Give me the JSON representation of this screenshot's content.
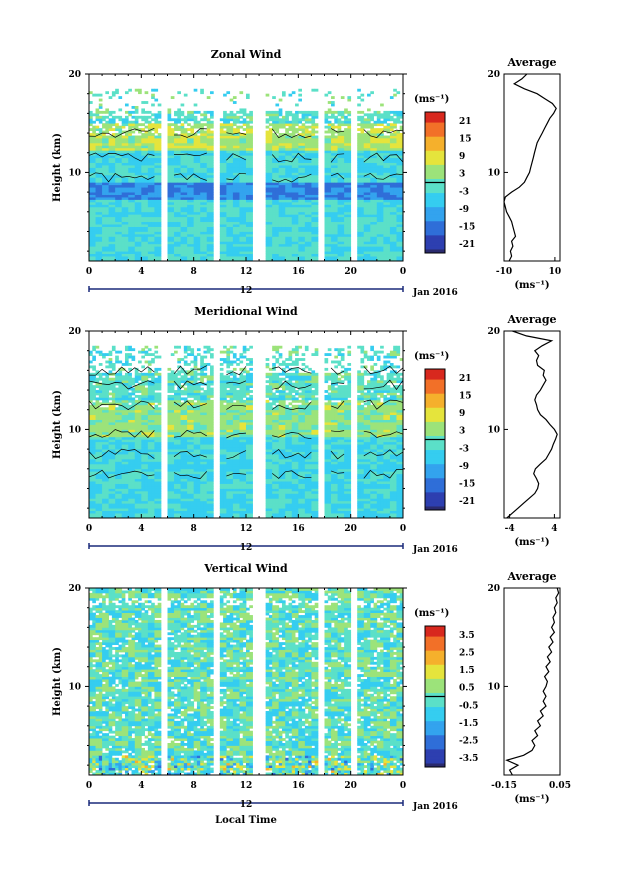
{
  "figure": {
    "month_label": "Jan 2016",
    "local_time_label": "Local Time",
    "height_label": "Height (km)",
    "date_label": "12",
    "average_title": "Average"
  },
  "chart_data": [
    {
      "type": "heatmap",
      "title": "Zonal Wind",
      "xlabel": "",
      "ylabel": "Height (km)",
      "x_ticks": [
        "0",
        "4",
        "8",
        "12",
        "16",
        "20",
        "0"
      ],
      "xlim": [
        0,
        24
      ],
      "y_ticks": [
        "10",
        "20"
      ],
      "ylim": [
        1,
        20
      ],
      "data_gaps_hours": [
        [
          5.5,
          6.0
        ],
        [
          9.5,
          10.0
        ],
        [
          12.5,
          13.5
        ],
        [
          17.5,
          18.0
        ],
        [
          20.0,
          20.5
        ]
      ],
      "colorbar": {
        "unit": "(ms⁻¹)",
        "ticks": [
          "21",
          "15",
          "9",
          "3",
          "-3",
          "-9",
          "-15",
          "-21"
        ],
        "range": [
          -24,
          24
        ]
      },
      "profile": {
        "title": "Average",
        "xlim": [
          -10,
          12
        ],
        "x_ticks": [
          "-10",
          "10"
        ],
        "xlabel": "(ms⁻¹)",
        "points": [
          [
            -8,
            1
          ],
          [
            -7,
            1.5
          ],
          [
            -7.5,
            2
          ],
          [
            -6.5,
            2.5
          ],
          [
            -7,
            3
          ],
          [
            -5.5,
            3.5
          ],
          [
            -6,
            4
          ],
          [
            -6.5,
            4.5
          ],
          [
            -7,
            5
          ],
          [
            -8,
            5.5
          ],
          [
            -9,
            6
          ],
          [
            -9.5,
            6.5
          ],
          [
            -10,
            7
          ],
          [
            -9.5,
            7.5
          ],
          [
            -7,
            8
          ],
          [
            -4,
            8.5
          ],
          [
            -2,
            9
          ],
          [
            -1,
            9.5
          ],
          [
            0,
            10
          ],
          [
            0.5,
            10.5
          ],
          [
            1,
            11
          ],
          [
            1.5,
            11.5
          ],
          [
            2,
            12
          ],
          [
            2.5,
            12.5
          ],
          [
            3,
            13
          ],
          [
            4,
            13.5
          ],
          [
            5,
            14
          ],
          [
            6,
            14.5
          ],
          [
            7,
            15
          ],
          [
            8,
            15.5
          ],
          [
            9.5,
            16
          ],
          [
            10.5,
            16.5
          ],
          [
            9,
            17
          ],
          [
            6,
            17.5
          ],
          [
            3,
            18
          ],
          [
            -2,
            18.5
          ],
          [
            -6,
            19
          ],
          [
            -3,
            19.5
          ],
          [
            -1,
            20
          ]
        ]
      }
    },
    {
      "type": "heatmap",
      "title": "Meridional Wind",
      "xlabel": "",
      "ylabel": "Height (km)",
      "x_ticks": [
        "0",
        "4",
        "8",
        "12",
        "16",
        "20",
        "0"
      ],
      "xlim": [
        0,
        24
      ],
      "y_ticks": [
        "10",
        "20"
      ],
      "ylim": [
        1,
        20
      ],
      "data_gaps_hours": [
        [
          5.5,
          6.0
        ],
        [
          9.5,
          10.0
        ],
        [
          12.5,
          13.5
        ],
        [
          17.5,
          18.0
        ],
        [
          20.0,
          20.5
        ]
      ],
      "colorbar": {
        "unit": "(ms⁻¹)",
        "ticks": [
          "21",
          "15",
          "9",
          "3",
          "-3",
          "-9",
          "-15",
          "-21"
        ],
        "range": [
          -24,
          24
        ]
      },
      "profile": {
        "title": "Average",
        "xlim": [
          -5,
          5
        ],
        "x_ticks": [
          "-4",
          "4"
        ],
        "xlabel": "(ms⁻¹)",
        "points": [
          [
            -4.5,
            1
          ],
          [
            -3.5,
            1.5
          ],
          [
            -2.5,
            2
          ],
          [
            -1.5,
            2.5
          ],
          [
            -0.5,
            3
          ],
          [
            0.5,
            3.5
          ],
          [
            1,
            4
          ],
          [
            1.2,
            4.5
          ],
          [
            0.8,
            5
          ],
          [
            0.3,
            5.5
          ],
          [
            0.6,
            6
          ],
          [
            1.5,
            6.5
          ],
          [
            2.5,
            7
          ],
          [
            3,
            7.5
          ],
          [
            3.5,
            8
          ],
          [
            3.8,
            8.5
          ],
          [
            4.2,
            9
          ],
          [
            4.5,
            9.5
          ],
          [
            4,
            10
          ],
          [
            3.2,
            10.5
          ],
          [
            2.5,
            11
          ],
          [
            1.5,
            11.5
          ],
          [
            1,
            12
          ],
          [
            0.8,
            12.5
          ],
          [
            0.5,
            13
          ],
          [
            0.8,
            13.5
          ],
          [
            1.5,
            14
          ],
          [
            2,
            14.5
          ],
          [
            2.5,
            15
          ],
          [
            2,
            15.5
          ],
          [
            2.2,
            16
          ],
          [
            1,
            16.5
          ],
          [
            0.8,
            17
          ],
          [
            1.2,
            17.5
          ],
          [
            0.5,
            18
          ],
          [
            1.8,
            18.5
          ],
          [
            3.5,
            19
          ],
          [
            -1,
            19.5
          ],
          [
            -3.5,
            20
          ]
        ]
      }
    },
    {
      "type": "heatmap",
      "title": "Vertical Wind",
      "xlabel": "Local Time",
      "ylabel": "Height (km)",
      "x_ticks": [
        "0",
        "4",
        "8",
        "12",
        "16",
        "20",
        "0"
      ],
      "xlim": [
        0,
        24
      ],
      "y_ticks": [
        "10",
        "20"
      ],
      "ylim": [
        1,
        20
      ],
      "data_gaps_hours": [
        [
          5.5,
          6.0
        ],
        [
          9.5,
          10.0
        ],
        [
          12.5,
          13.5
        ],
        [
          17.5,
          18.0
        ],
        [
          20.0,
          20.5
        ]
      ],
      "colorbar": {
        "unit": "(ms⁻¹)",
        "ticks": [
          "3.5",
          "2.5",
          "1.5",
          "0.5",
          "-0.5",
          "-1.5",
          "-2.5",
          "-3.5"
        ],
        "range": [
          -4,
          4
        ]
      },
      "profile": {
        "title": "Average",
        "xlim": [
          -0.15,
          0.05
        ],
        "x_ticks": [
          "-0.15",
          "0.05"
        ],
        "xlabel": "(ms⁻¹)",
        "points": [
          [
            -0.12,
            1
          ],
          [
            -0.13,
            1.5
          ],
          [
            -0.1,
            2
          ],
          [
            -0.14,
            2.5
          ],
          [
            -0.08,
            3
          ],
          [
            -0.05,
            3.5
          ],
          [
            -0.04,
            4
          ],
          [
            -0.05,
            4.5
          ],
          [
            -0.03,
            5
          ],
          [
            -0.04,
            5.5
          ],
          [
            -0.02,
            6
          ],
          [
            -0.03,
            6.5
          ],
          [
            -0.01,
            7
          ],
          [
            -0.02,
            7.5
          ],
          [
            0,
            8
          ],
          [
            -0.01,
            8.5
          ],
          [
            0,
            9
          ],
          [
            -0.01,
            9.5
          ],
          [
            0,
            10
          ],
          [
            0.005,
            10.5
          ],
          [
            -0.005,
            11
          ],
          [
            0.01,
            11.5
          ],
          [
            0,
            12
          ],
          [
            0.015,
            12.5
          ],
          [
            0.005,
            13
          ],
          [
            0.02,
            13.5
          ],
          [
            0.01,
            14
          ],
          [
            0.025,
            14.5
          ],
          [
            0.015,
            15
          ],
          [
            0.03,
            15.5
          ],
          [
            0.02,
            16
          ],
          [
            0.03,
            16.5
          ],
          [
            0.025,
            17
          ],
          [
            0.035,
            17.5
          ],
          [
            0.03,
            18
          ],
          [
            0.04,
            18.5
          ],
          [
            0.035,
            19
          ],
          [
            0.045,
            19.5
          ],
          [
            0.04,
            20
          ]
        ]
      }
    }
  ]
}
